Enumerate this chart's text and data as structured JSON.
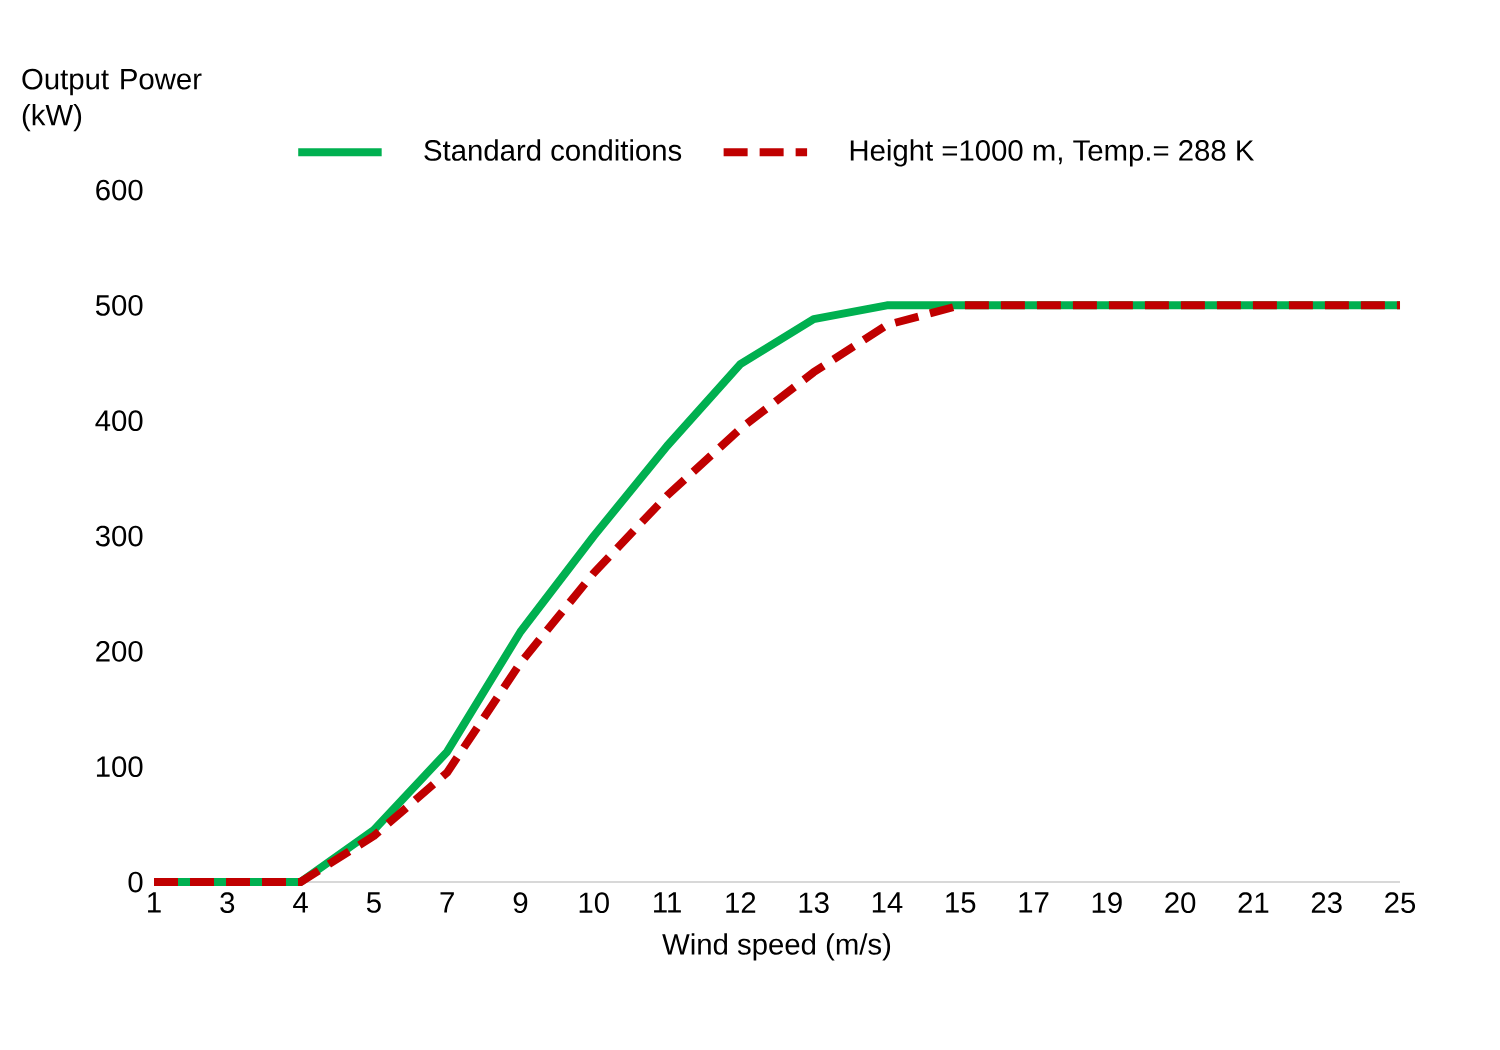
{
  "chart_data": {
    "type": "line",
    "xlabel": "Wind speed (m/s)",
    "ylabel": "Output Power (kW)",
    "categories": [
      "1",
      "3",
      "4",
      "5",
      "7",
      "9",
      "10",
      "11",
      "12",
      "13",
      "14",
      "15",
      "17",
      "19",
      "20",
      "21",
      "23",
      "25"
    ],
    "series": [
      {
        "name": "Standard conditions",
        "color": "#00b050",
        "line_style": "solid",
        "values": [
          0,
          0,
          0,
          45,
          113,
          217,
          300,
          378,
          449,
          488,
          500,
          500,
          500,
          500,
          500,
          500,
          500,
          500
        ]
      },
      {
        "name": "Height =1000 m, Temp.= 288 K",
        "color": "#c00000",
        "line_style": "dashed",
        "values": [
          0,
          0,
          0,
          40,
          95,
          190,
          268,
          335,
          393,
          442,
          483,
          500,
          500,
          500,
          500,
          500,
          500,
          500
        ]
      }
    ],
    "ylim": [
      0,
      600
    ],
    "yticks": [
      0,
      100,
      200,
      300,
      400,
      500,
      600
    ],
    "grid": false,
    "legend": "top",
    "marker": "none"
  }
}
